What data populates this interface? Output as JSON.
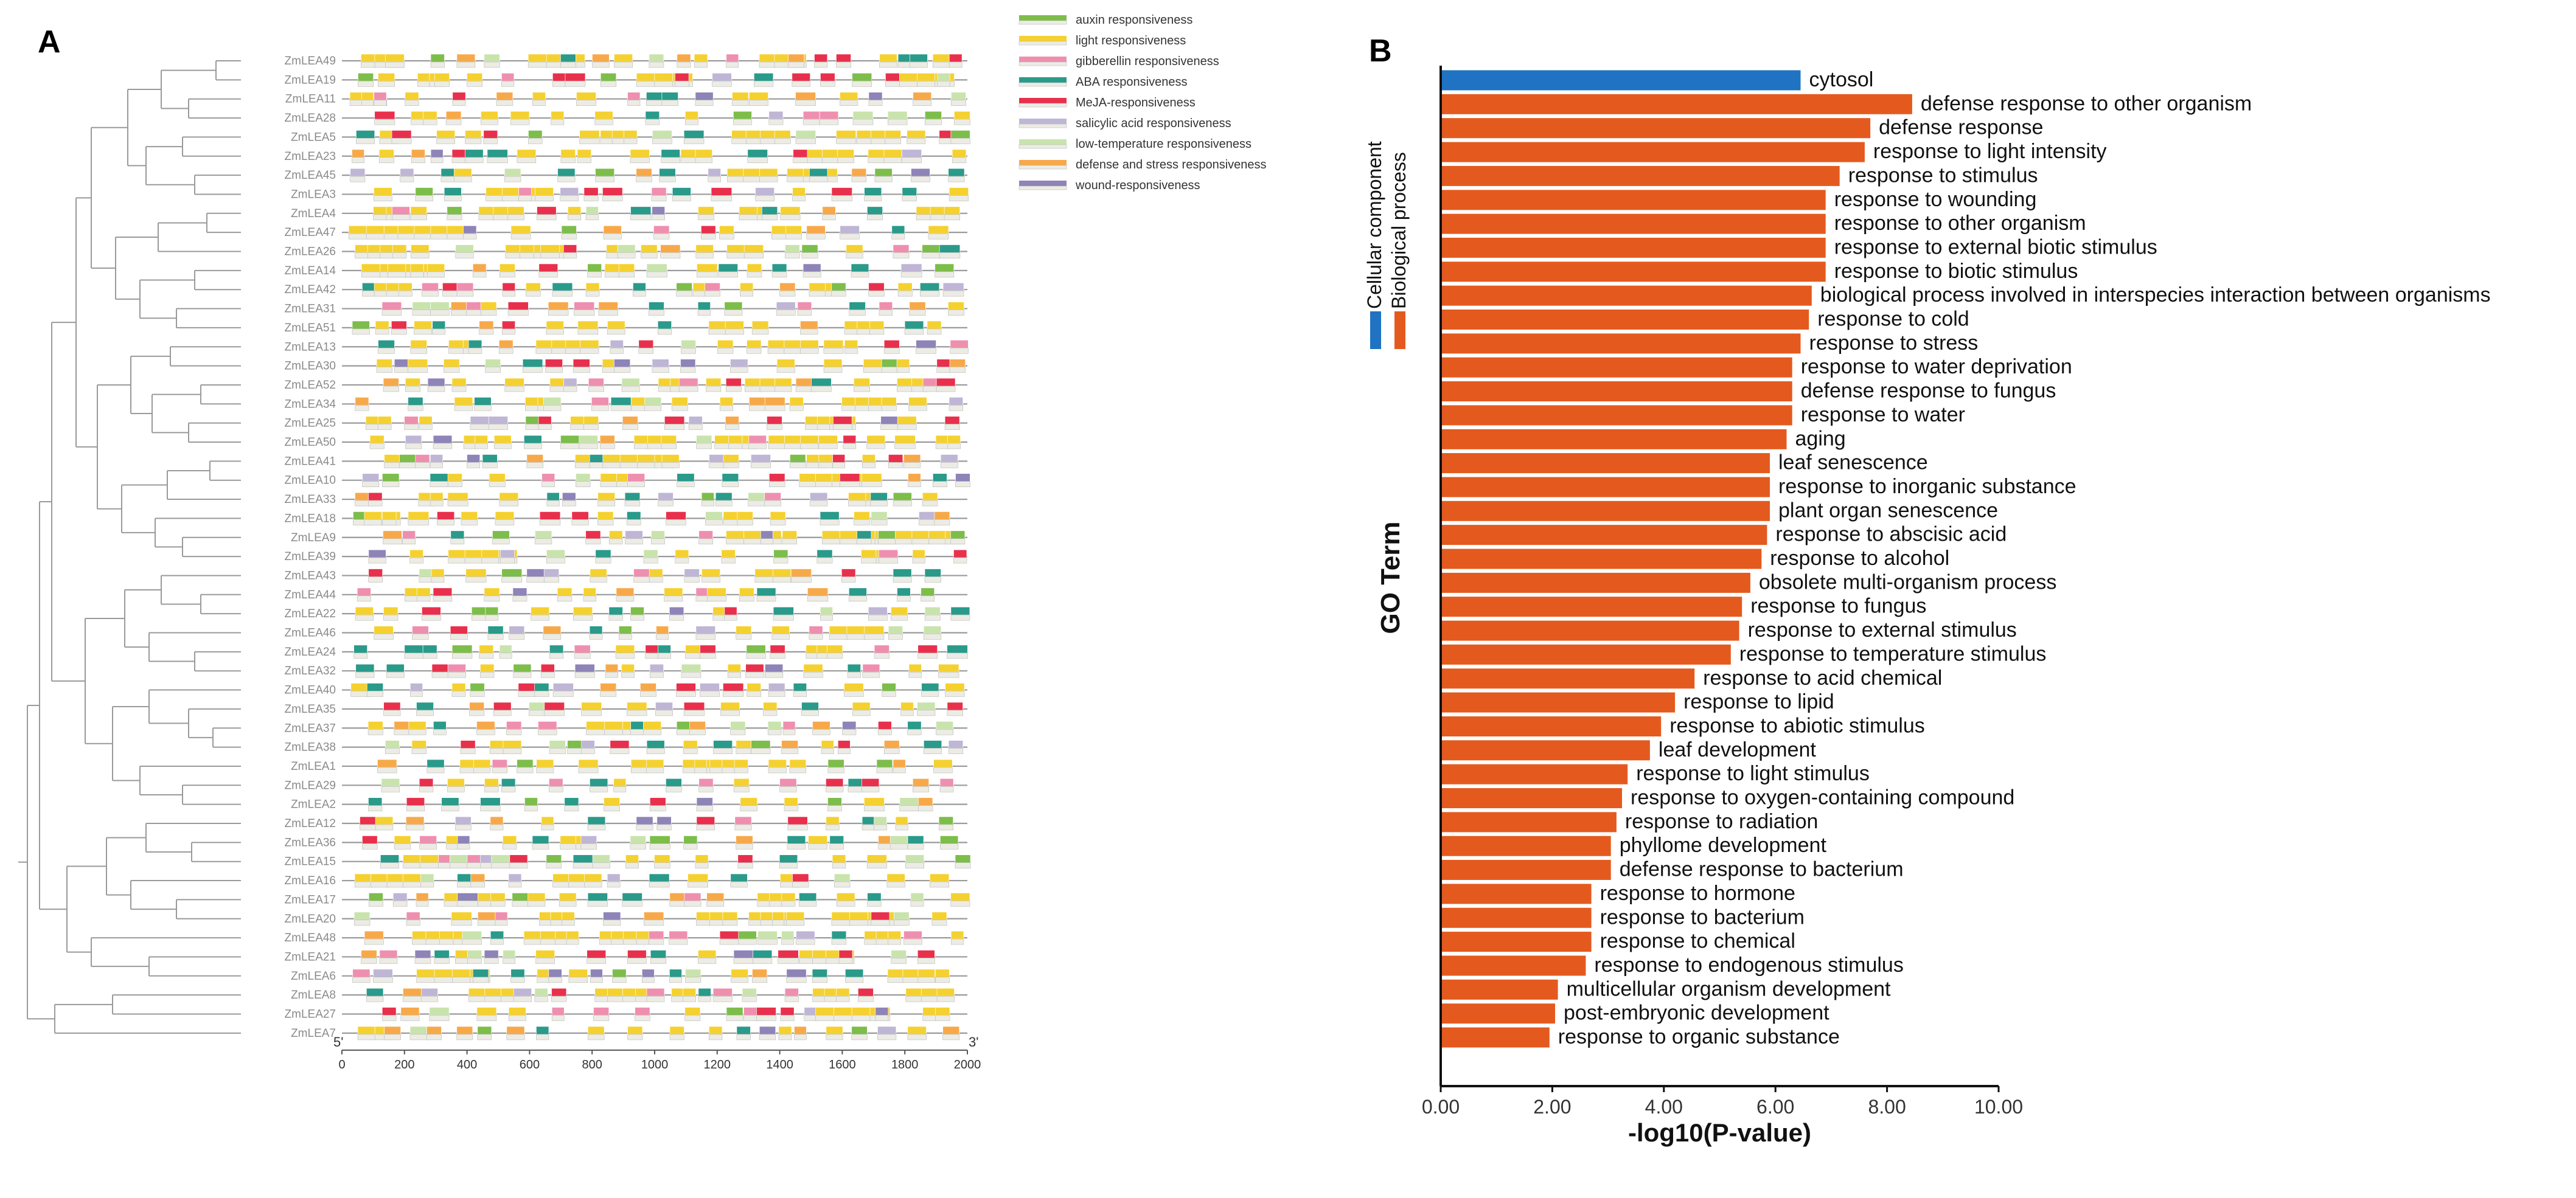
{
  "panels": {
    "left_letter": "A",
    "right_letter": "B"
  },
  "colors": {
    "auxin": "#7dbd4a",
    "light": "#f5d130",
    "gibberellin": "#ef8fb0",
    "aba": "#2a9a8a",
    "meja": "#e8304c",
    "salicylic": "#bfb6d6",
    "low_temp": "#c9e3ad",
    "defense": "#f7a94a",
    "wound": "#8e84b8",
    "cellular_component": "#1f73c2",
    "biological_process": "#e45a1e",
    "tree": "#9a9a9a",
    "gene_line": "#9a9a9a"
  },
  "chart_data": [
    {
      "type": "cis-element-map",
      "panel": "A",
      "legend": [
        {
          "key": "auxin",
          "label": "auxin responsiveness"
        },
        {
          "key": "light",
          "label": "light responsiveness"
        },
        {
          "key": "gibberellin",
          "label": "gibberellin responsiveness"
        },
        {
          "key": "aba",
          "label": "ABA responsiveness"
        },
        {
          "key": "meja",
          "label": "MeJA-responsiveness"
        },
        {
          "key": "salicylic",
          "label": "salicylic acid responsiveness"
        },
        {
          "key": "low_temp",
          "label": "low-temperature responsiveness"
        },
        {
          "key": "defense",
          "label": "defense and stress responsiveness"
        },
        {
          "key": "wound",
          "label": "wound-responsiveness"
        }
      ],
      "genes": [
        "ZmLEA49",
        "ZmLEA19",
        "ZmLEA11",
        "ZmLEA28",
        "ZmLEA5",
        "ZmLEA23",
        "ZmLEA45",
        "ZmLEA3",
        "ZmLEA4",
        "ZmLEA47",
        "ZmLEA26",
        "ZmLEA14",
        "ZmLEA42",
        "ZmLEA31",
        "ZmLEA51",
        "ZmLEA13",
        "ZmLEA30",
        "ZmLEA52",
        "ZmLEA34",
        "ZmLEA25",
        "ZmLEA50",
        "ZmLEA41",
        "ZmLEA10",
        "ZmLEA33",
        "ZmLEA18",
        "ZmLEA9",
        "ZmLEA39",
        "ZmLEA43",
        "ZmLEA44",
        "ZmLEA22",
        "ZmLEA46",
        "ZmLEA24",
        "ZmLEA32",
        "ZmLEA40",
        "ZmLEA35",
        "ZmLEA37",
        "ZmLEA38",
        "ZmLEA1",
        "ZmLEA29",
        "ZmLEA2",
        "ZmLEA12",
        "ZmLEA36",
        "ZmLEA15",
        "ZmLEA16",
        "ZmLEA17",
        "ZmLEA20",
        "ZmLEA48",
        "ZmLEA21",
        "ZmLEA6",
        "ZmLEA8",
        "ZmLEA27",
        "ZmLEA7"
      ],
      "x_start_label": "5'",
      "x_end_label": "3'",
      "xlim": [
        0,
        2000
      ],
      "x_ticks": [
        "0",
        "200",
        "400",
        "600",
        "800",
        "1000",
        "1200",
        "1400",
        "1600",
        "1800",
        "2000"
      ]
    },
    {
      "type": "bar",
      "panel": "B",
      "orientation": "horizontal",
      "xlabel": "-log10(P-value)",
      "ylabel": "GO Term",
      "xlim": [
        0,
        10
      ],
      "x_ticks": [
        "0.00",
        "2.00",
        "4.00",
        "6.00",
        "8.00",
        "10.00"
      ],
      "group_labels": {
        "cellular_component": "Cellular component",
        "biological_process": "Biological process"
      },
      "bars": [
        {
          "term": "cytosol",
          "value": 6.45,
          "group": "cellular_component"
        },
        {
          "term": "defense response to other organism",
          "value": 8.45,
          "group": "biological_process"
        },
        {
          "term": "defense response",
          "value": 7.7,
          "group": "biological_process"
        },
        {
          "term": "response to light intensity",
          "value": 7.6,
          "group": "biological_process"
        },
        {
          "term": "response to stimulus",
          "value": 7.15,
          "group": "biological_process"
        },
        {
          "term": "response to wounding",
          "value": 6.9,
          "group": "biological_process"
        },
        {
          "term": "response to other organism",
          "value": 6.9,
          "group": "biological_process"
        },
        {
          "term": "response to external biotic stimulus",
          "value": 6.9,
          "group": "biological_process"
        },
        {
          "term": "response to biotic stimulus",
          "value": 6.9,
          "group": "biological_process"
        },
        {
          "term": "biological process involved in interspecies interaction between organisms",
          "value": 6.65,
          "group": "biological_process"
        },
        {
          "term": "response to cold",
          "value": 6.6,
          "group": "biological_process"
        },
        {
          "term": "response to stress",
          "value": 6.45,
          "group": "biological_process"
        },
        {
          "term": "response to water deprivation",
          "value": 6.3,
          "group": "biological_process"
        },
        {
          "term": "defense response to fungus",
          "value": 6.3,
          "group": "biological_process"
        },
        {
          "term": "response to water",
          "value": 6.3,
          "group": "biological_process"
        },
        {
          "term": "aging",
          "value": 6.2,
          "group": "biological_process"
        },
        {
          "term": "leaf senescence",
          "value": 5.9,
          "group": "biological_process"
        },
        {
          "term": "response to inorganic substance",
          "value": 5.9,
          "group": "biological_process"
        },
        {
          "term": "plant organ senescence",
          "value": 5.9,
          "group": "biological_process"
        },
        {
          "term": "response to abscisic acid",
          "value": 5.85,
          "group": "biological_process"
        },
        {
          "term": "response to alcohol",
          "value": 5.75,
          "group": "biological_process"
        },
        {
          "term": "obsolete multi-organism process",
          "value": 5.55,
          "group": "biological_process"
        },
        {
          "term": "response to fungus",
          "value": 5.4,
          "group": "biological_process"
        },
        {
          "term": "response to external stimulus",
          "value": 5.35,
          "group": "biological_process"
        },
        {
          "term": "response to temperature stimulus",
          "value": 5.2,
          "group": "biological_process"
        },
        {
          "term": "response to acid chemical",
          "value": 4.55,
          "group": "biological_process"
        },
        {
          "term": "response to lipid",
          "value": 4.2,
          "group": "biological_process"
        },
        {
          "term": "response to abiotic stimulus",
          "value": 3.95,
          "group": "biological_process"
        },
        {
          "term": "leaf development",
          "value": 3.75,
          "group": "biological_process"
        },
        {
          "term": "response to light stimulus",
          "value": 3.35,
          "group": "biological_process"
        },
        {
          "term": "response to oxygen-containing compound",
          "value": 3.25,
          "group": "biological_process"
        },
        {
          "term": "response to radiation",
          "value": 3.15,
          "group": "biological_process"
        },
        {
          "term": "phyllome development",
          "value": 3.05,
          "group": "biological_process"
        },
        {
          "term": "defense response to bacterium",
          "value": 3.05,
          "group": "biological_process"
        },
        {
          "term": "response to hormone",
          "value": 2.7,
          "group": "biological_process"
        },
        {
          "term": "response to bacterium",
          "value": 2.7,
          "group": "biological_process"
        },
        {
          "term": "response to chemical",
          "value": 2.7,
          "group": "biological_process"
        },
        {
          "term": "response to endogenous stimulus",
          "value": 2.6,
          "group": "biological_process"
        },
        {
          "term": "multicellular organism development",
          "value": 2.1,
          "group": "biological_process"
        },
        {
          "term": "post-embryonic development",
          "value": 2.05,
          "group": "biological_process"
        },
        {
          "term": "response to organic substance",
          "value": 1.95,
          "group": "biological_process"
        }
      ]
    }
  ]
}
